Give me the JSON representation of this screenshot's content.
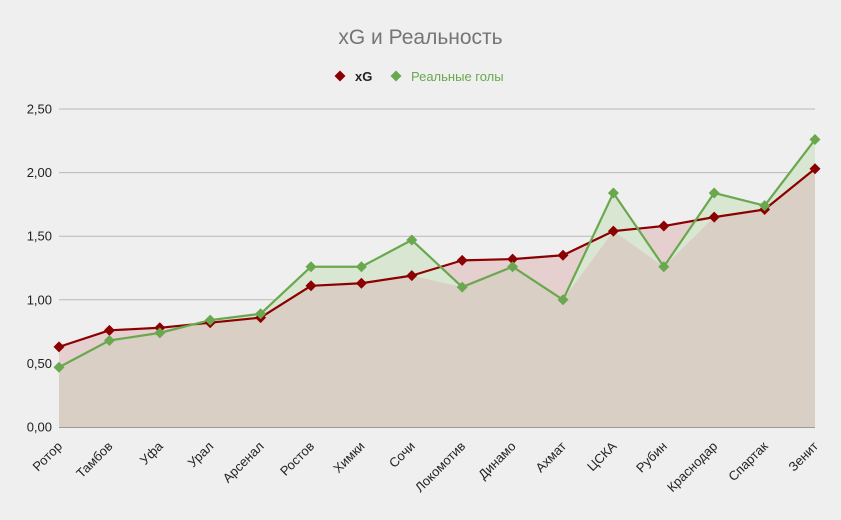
{
  "chart_data": {
    "type": "area",
    "title": "xG и Реальность",
    "xlabel": "",
    "ylabel": "",
    "categories": [
      "Ротор",
      "Тамбов",
      "Уфа",
      "Урал",
      "Арсенал",
      "Ростов",
      "Химки",
      "Сочи",
      "Локомотив",
      "Динамо",
      "Ахмат",
      "ЦСКА",
      "Рубин",
      "Краснодар",
      "Спартак",
      "Зенит"
    ],
    "y_ticks": [
      "0,00",
      "0,50",
      "1,00",
      "1,50",
      "2,00",
      "2,50"
    ],
    "ylim": [
      0,
      2.5
    ],
    "grid": true,
    "legend_position": "top",
    "series": [
      {
        "name": "xG",
        "color": "#8b0000",
        "label_color": "#222222",
        "fill": "#e6cfcf",
        "marker": "diamond",
        "values": [
          0.63,
          0.76,
          0.78,
          0.82,
          0.86,
          1.11,
          1.13,
          1.19,
          1.31,
          1.32,
          1.35,
          1.54,
          1.58,
          1.65,
          1.71,
          2.03
        ]
      },
      {
        "name": "Реальные голы",
        "color": "#6aa84f",
        "label_color": "#6aa84f",
        "fill": "#d9e6d1",
        "marker": "diamond",
        "values": [
          0.47,
          0.68,
          0.74,
          0.84,
          0.89,
          1.26,
          1.26,
          1.47,
          1.1,
          1.26,
          1.0,
          1.84,
          1.26,
          1.84,
          1.74,
          2.26
        ]
      }
    ],
    "overlap_fill": "#d9cfc5"
  }
}
